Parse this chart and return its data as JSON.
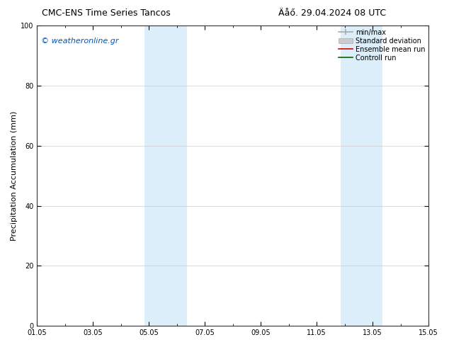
{
  "title_left": "CMC-ENS Time Series Tancos",
  "title_right": "Äåő. 29.04.2024 08 UTC",
  "ylabel": "Precipitation Accumulation (mm)",
  "ylim": [
    0,
    100
  ],
  "yticks": [
    0,
    20,
    40,
    60,
    80,
    100
  ],
  "xlim": [
    0,
    14
  ],
  "xtick_labels": [
    "01.05",
    "03.05",
    "05.05",
    "07.05",
    "09.05",
    "11.05",
    "13.05",
    "15.05"
  ],
  "xtick_positions": [
    0,
    2,
    4,
    6,
    8,
    10,
    12,
    14
  ],
  "minor_xtick_positions": [
    0,
    1,
    2,
    3,
    4,
    5,
    6,
    7,
    8,
    9,
    10,
    11,
    12,
    13,
    14
  ],
  "shaded_bands": [
    {
      "x_start": 3.85,
      "x_end": 5.35,
      "color": "#dbeef9"
    },
    {
      "x_start": 10.85,
      "x_end": 12.35,
      "color": "#dbeef9"
    }
  ],
  "watermark_text": "© weatheronline.gr",
  "watermark_color": "#0055bb",
  "watermark_fontsize": 8,
  "legend_items": [
    {
      "label": "min/max",
      "color": "#aaaaaa",
      "type": "errorbar"
    },
    {
      "label": "Standard deviation",
      "color": "#cccccc",
      "type": "patch"
    },
    {
      "label": "Ensemble mean run",
      "color": "#dd0000",
      "type": "line"
    },
    {
      "label": "Controll run",
      "color": "#006600",
      "type": "line"
    }
  ],
  "bg_color": "#ffffff",
  "plot_bg_color": "#ffffff",
  "grid_color": "#cccccc",
  "tick_label_fontsize": 7,
  "title_fontsize": 9,
  "ylabel_fontsize": 8,
  "legend_fontsize": 7
}
